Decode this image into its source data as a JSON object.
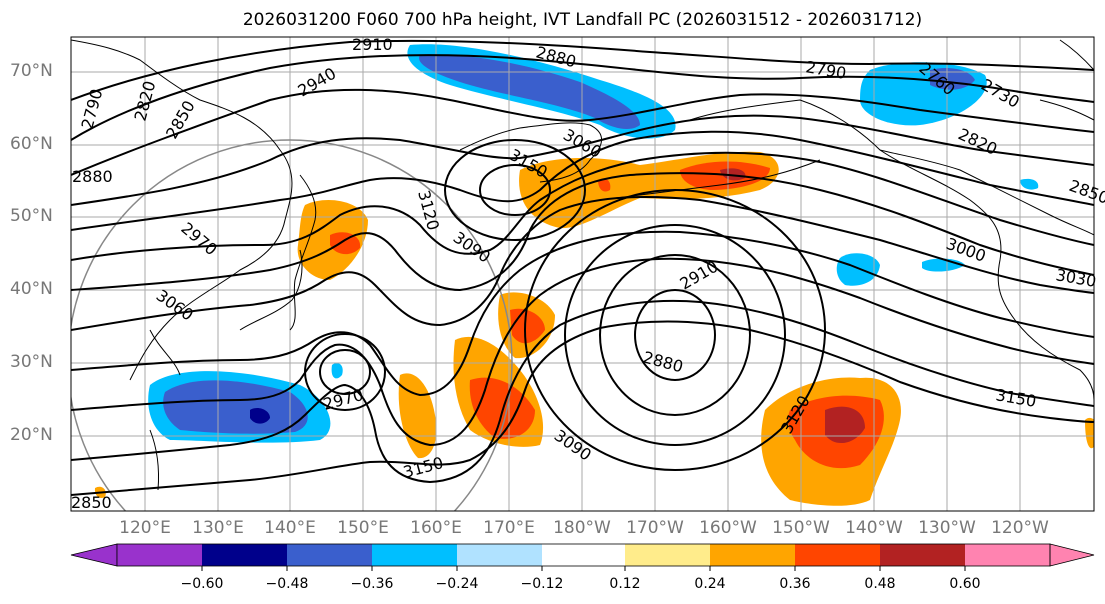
{
  "title": "2026031200 F060 700 hPa height, IVT Landfall PC (2026031512 - 2026031712)",
  "lat_labels": [
    "70°N",
    "60°N",
    "50°N",
    "40°N",
    "30°N",
    "20°N"
  ],
  "lon_labels": [
    "120°E",
    "130°E",
    "140°E",
    "150°E",
    "160°E",
    "170°E",
    "180°W",
    "170°W",
    "160°W",
    "150°W",
    "140°W",
    "130°W",
    "120°W"
  ],
  "contour_labels": [
    "2790",
    "2820",
    "2850",
    "2880",
    "2910",
    "2940",
    "2880",
    "3060",
    "3150",
    "3120",
    "3090",
    "2970",
    "3060",
    "2970",
    "3150",
    "2910",
    "2880",
    "3090",
    "3120",
    "2790",
    "2760",
    "2730",
    "2820",
    "3000",
    "3030",
    "3150",
    "2850",
    "2850"
  ],
  "colorbar": {
    "ticks": [
      "−0.60",
      "−0.48",
      "−0.36",
      "−0.24",
      "−0.12",
      "0.12",
      "0.24",
      "0.36",
      "0.48",
      "0.60"
    ],
    "colors": [
      "#9932cc",
      "#00008b",
      "#3a5fcd",
      "#00bfff",
      "#b0e2ff",
      "#ffffff",
      "#ffec8b",
      "#ffa500",
      "#ff4500",
      "#b22222",
      "#ff83b0"
    ]
  }
}
